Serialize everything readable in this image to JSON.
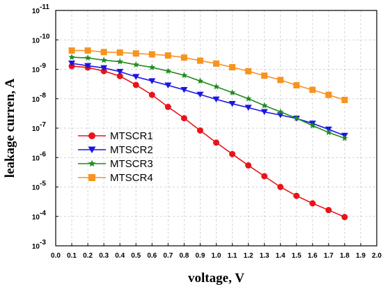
{
  "chart_data": {
    "type": "line",
    "xlabel": "voltage, V",
    "ylabel": "leakage curren, A",
    "xlim": [
      0.0,
      2.0
    ],
    "x_ticks": [
      "0.0",
      "0.1",
      "0.2",
      "0.3",
      "0.4",
      "0.5",
      "0.6",
      "0.7",
      "0.8",
      "0.9",
      "1.0",
      "1.1",
      "1.2",
      "1.3",
      "1.4",
      "1.5",
      "1.6",
      "1.7",
      "1.8",
      "1.9",
      "2.0"
    ],
    "y_scale": "log",
    "y_axis_inverted": true,
    "ylim": [
      1e-11,
      0.001
    ],
    "y_tick_exponents": [
      -11,
      -10,
      -9,
      -8,
      -7,
      -6,
      -5,
      -4,
      -3
    ],
    "y_ticks": [
      {
        "base": "10",
        "exp": "-11"
      },
      {
        "base": "10",
        "exp": "-10"
      },
      {
        "base": "10",
        "exp": "-9"
      },
      {
        "base": "10",
        "exp": "-8"
      },
      {
        "base": "10",
        "exp": "-7"
      },
      {
        "base": "10",
        "exp": "-6"
      },
      {
        "base": "10",
        "exp": "-5"
      },
      {
        "base": "10",
        "exp": "-4"
      },
      {
        "base": "10",
        "exp": "-3"
      }
    ],
    "grid": true,
    "legend_position": "lower-left",
    "x": [
      0.1,
      0.2,
      0.3,
      0.4,
      0.5,
      0.6,
      0.7,
      0.8,
      0.9,
      1.0,
      1.1,
      1.2,
      1.3,
      1.4,
      1.5,
      1.6,
      1.7,
      1.8
    ],
    "series": [
      {
        "name": "MTSCR1",
        "color": "#e8141a",
        "marker": "circle",
        "values": [
          7.8e-10,
          8.7e-10,
          1.15e-09,
          1.7e-09,
          3.4e-09,
          7.4e-09,
          1.9e-08,
          4.6e-08,
          1.2e-07,
          3.1e-07,
          7.6e-07,
          1.85e-06,
          4.3e-06,
          1e-05,
          2e-05,
          3.6e-05,
          6.1e-05,
          0.000105
        ]
      },
      {
        "name": "MTSCR2",
        "color": "#1a14e6",
        "marker": "triangle-down",
        "values": [
          6.3e-10,
          7.6e-10,
          9e-10,
          1.2e-09,
          1.8e-09,
          2.5e-09,
          3.5e-09,
          5e-09,
          7.2e-09,
          1.05e-08,
          1.48e-08,
          2e-08,
          2.8e-08,
          3.6e-08,
          4.7e-08,
          6.9e-08,
          1.1e-07,
          1.8e-07
        ]
      },
      {
        "name": "MTSCR3",
        "color": "#1f8a1f",
        "marker": "star",
        "values": [
          3.9e-10,
          4.1e-10,
          4.9e-10,
          5.5e-10,
          7e-10,
          8.6e-10,
          1.15e-09,
          1.6e-09,
          2.5e-09,
          3.9e-09,
          6.2e-09,
          1e-08,
          1.7e-08,
          2.8e-08,
          4.6e-08,
          8.2e-08,
          1.4e-07,
          2.2e-07
        ]
      },
      {
        "name": "MTSCR4",
        "color": "#f7931e",
        "marker": "square",
        "values": [
          2.3e-10,
          2.3e-10,
          2.6e-10,
          2.7e-10,
          2.9e-10,
          3.1e-10,
          3.4e-10,
          4e-10,
          5.1e-10,
          6.4e-10,
          8.5e-10,
          1.16e-09,
          1.65e-09,
          2.3e-09,
          3.5e-09,
          5e-09,
          7.4e-09,
          1.1e-08
        ]
      }
    ]
  }
}
